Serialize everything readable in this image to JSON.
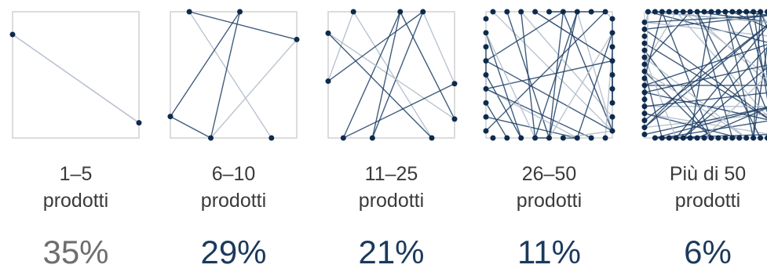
{
  "chart_data": {
    "type": "bar",
    "categories": [
      [
        "1–5",
        "prodotti"
      ],
      [
        "6–10",
        "prodotti"
      ],
      [
        "11–25",
        "prodotti"
      ],
      [
        "26–50",
        "prodotti"
      ],
      [
        "Più di 50",
        "prodotti"
      ]
    ],
    "values": [
      35,
      29,
      21,
      11,
      6
    ],
    "value_labels": [
      "35%",
      "29%",
      "21%",
      "11%",
      "6%"
    ],
    "title": "",
    "legend": "none",
    "colors": {
      "first_value": "#6e6e6e",
      "other_values": "#1b3a5c",
      "box_border": "#d0d0d0",
      "dot": "#0e2a4d",
      "line_light": "#b3bccb",
      "line_dark": "#1f3f66"
    }
  }
}
